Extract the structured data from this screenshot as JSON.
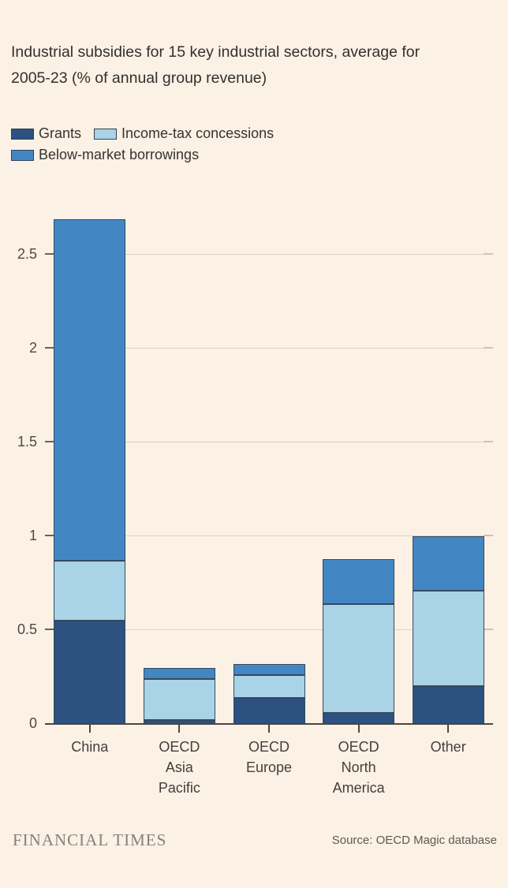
{
  "header": {
    "title": "Industrial subsidies for 15 key industrial sectors, average for\n2005-23 (% of annual group revenue)"
  },
  "chart_data": {
    "type": "bar",
    "stacked": true,
    "title": "Industrial subsidies for 15 key industrial sectors, average for 2005-23 (% of annual group revenue)",
    "unit": "% of annual group revenue",
    "categories": [
      "China",
      "OECD\nAsia\nPacific",
      "OECD\nEurope",
      "OECD\nNorth\nAmerica",
      "Other"
    ],
    "series": [
      {
        "name": "Grants",
        "color": "#2D5181",
        "values": [
          0.55,
          0.02,
          0.14,
          0.06,
          0.2
        ]
      },
      {
        "name": "Income-tax concessions",
        "color": "#A9D3E6",
        "values": [
          0.32,
          0.22,
          0.12,
          0.58,
          0.51
        ]
      },
      {
        "name": "Below-market borrowings",
        "color": "#4287C3",
        "values": [
          1.82,
          0.06,
          0.06,
          0.24,
          0.29
        ]
      }
    ],
    "totals": [
      2.69,
      0.3,
      0.32,
      0.88,
      1.0
    ],
    "y_ticks": [
      {
        "value": 0,
        "label": "0"
      },
      {
        "value": 0.5,
        "label": "0.5"
      },
      {
        "value": 1,
        "label": "1"
      },
      {
        "value": 1.5,
        "label": "1.5"
      },
      {
        "value": 2,
        "label": "2"
      },
      {
        "value": 2.5,
        "label": "2.5"
      }
    ],
    "ylim": [
      0,
      2.81
    ],
    "grid": "horizontal",
    "legend_position": "top-left",
    "segment_border_color": "#35495E",
    "background_color": "#FBF1E5"
  },
  "footer": {
    "brand": "FINANCIAL TIMES",
    "source": "Source: OECD Magic database"
  }
}
